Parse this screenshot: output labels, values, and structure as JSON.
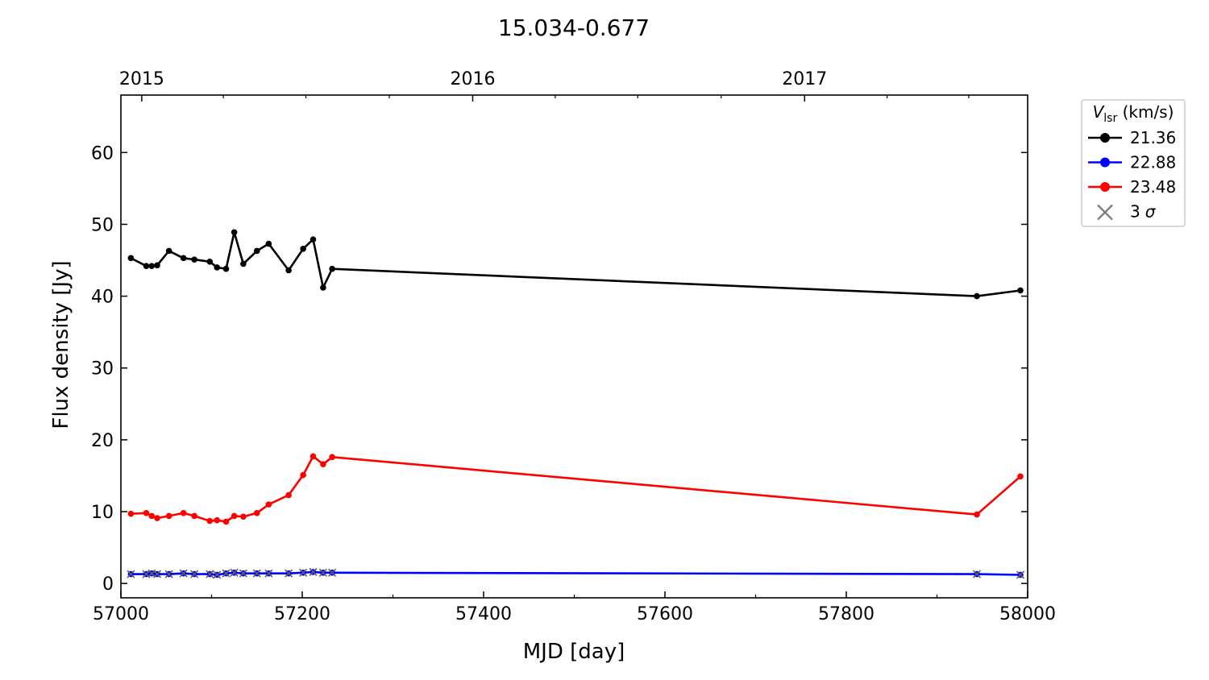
{
  "chart_data": {
    "type": "line",
    "title": "15.034-0.677",
    "xlabel": "MJD [day]",
    "ylabel": "Flux density [Jy]",
    "xlim": [
      57000,
      58000
    ],
    "ylim": [
      -2,
      68
    ],
    "xticks": [
      57000,
      57200,
      57400,
      57600,
      57800,
      58000
    ],
    "xticks_minor": [
      57100,
      57300,
      57500,
      57700,
      57900
    ],
    "yticks": [
      0,
      10,
      20,
      30,
      40,
      50,
      60
    ],
    "top_axis": {
      "ticks": [
        {
          "label": "2015",
          "x": 57023
        },
        {
          "label": "2016",
          "x": 57388
        },
        {
          "label": "2017",
          "x": 57754
        }
      ]
    },
    "grid": false,
    "legend": {
      "placement": "outside-top-right",
      "title_symbol": "V",
      "title_subscript": "lsr",
      "title_unit": " (km/s)",
      "entries": [
        {
          "label": "21.36",
          "color": "#000000",
          "marker": "circle"
        },
        {
          "label": "22.88",
          "color": "#0000ff",
          "marker": "circle"
        },
        {
          "label": "23.48",
          "color": "#ff0000",
          "marker": "circle"
        },
        {
          "label": "3",
          "label_symbol": "σ",
          "color": "#808080",
          "marker": "x"
        }
      ]
    },
    "x": [
      57011,
      57028,
      57034,
      57040,
      57053,
      57069,
      57081,
      57098,
      57106,
      57116,
      57125,
      57135,
      57150,
      57163,
      57185,
      57201,
      57212,
      57223,
      57233,
      57944,
      57992
    ],
    "series": [
      {
        "name": "21.36",
        "color": "#000000",
        "marker": "circle",
        "values": [
          45.3,
          44.2,
          44.2,
          44.3,
          46.3,
          45.3,
          45.1,
          44.8,
          44.0,
          43.8,
          48.9,
          44.5,
          46.3,
          47.3,
          43.6,
          46.6,
          47.9,
          41.2,
          43.8,
          40.0,
          40.8
        ]
      },
      {
        "name": "22.88",
        "color": "#0000ff",
        "marker": "circle",
        "upper_limit_marker": "x",
        "values": [
          1.3,
          1.3,
          1.4,
          1.3,
          1.3,
          1.4,
          1.3,
          1.3,
          1.2,
          1.4,
          1.5,
          1.4,
          1.4,
          1.4,
          1.4,
          1.5,
          1.6,
          1.5,
          1.5,
          1.3,
          1.2
        ]
      },
      {
        "name": "23.48",
        "color": "#ff0000",
        "marker": "circle",
        "values": [
          9.7,
          9.8,
          9.4,
          9.1,
          9.4,
          9.8,
          9.4,
          8.7,
          8.8,
          8.6,
          9.4,
          9.3,
          9.8,
          11.0,
          12.3,
          15.1,
          17.7,
          16.6,
          17.6,
          9.6,
          14.9
        ]
      }
    ]
  }
}
